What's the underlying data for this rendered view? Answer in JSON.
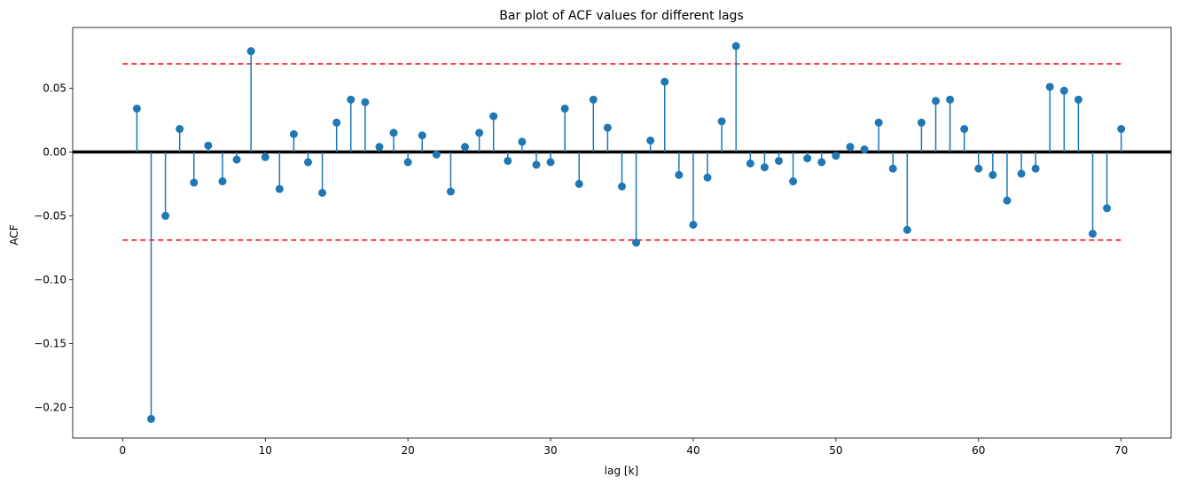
{
  "chart_data": {
    "type": "stem",
    "title": "Bar plot of ACF values for different lags",
    "xlabel": "lag [k]",
    "ylabel": "ACF",
    "xlim": [
      -3.5,
      73.5
    ],
    "ylim": [
      -0.224,
      0.0975
    ],
    "xticks": [
      0,
      10,
      20,
      30,
      40,
      50,
      60,
      70
    ],
    "xtick_labels": [
      "0",
      "10",
      "20",
      "30",
      "40",
      "50",
      "60",
      "70"
    ],
    "yticks": [
      -0.2,
      -0.15,
      -0.1,
      -0.05,
      0.0,
      0.05
    ],
    "ytick_labels": [
      "−0.20",
      "−0.15",
      "−0.10",
      "−0.05",
      "0.00",
      "0.05"
    ],
    "confidence_bound": 0.069,
    "confidence_x_range": [
      0,
      70
    ],
    "zero_line": 0,
    "colors": {
      "stem": "#1f77b4",
      "bounds": "#ff0000",
      "zero": "#000000"
    },
    "x": [
      1,
      2,
      3,
      4,
      5,
      6,
      7,
      8,
      9,
      10,
      11,
      12,
      13,
      14,
      15,
      16,
      17,
      18,
      19,
      20,
      21,
      22,
      23,
      24,
      25,
      26,
      27,
      28,
      29,
      30,
      31,
      32,
      33,
      34,
      35,
      36,
      37,
      38,
      39,
      40,
      41,
      42,
      43,
      44,
      45,
      46,
      47,
      48,
      49,
      50,
      51,
      52,
      53,
      54,
      55,
      56,
      57,
      58,
      59,
      60,
      61,
      62,
      63,
      64,
      65,
      66,
      67,
      68,
      69,
      70
    ],
    "values": [
      0.034,
      -0.209,
      -0.05,
      0.018,
      -0.024,
      0.005,
      -0.023,
      -0.006,
      0.079,
      -0.004,
      -0.029,
      0.014,
      -0.008,
      -0.032,
      0.023,
      0.041,
      0.039,
      0.004,
      0.015,
      -0.008,
      0.013,
      -0.002,
      -0.031,
      0.004,
      0.015,
      0.028,
      -0.007,
      0.008,
      -0.01,
      -0.008,
      0.034,
      -0.025,
      0.041,
      0.019,
      -0.027,
      -0.071,
      0.009,
      0.055,
      -0.018,
      -0.057,
      -0.02,
      0.024,
      0.083,
      -0.009,
      -0.012,
      -0.007,
      -0.023,
      -0.005,
      -0.008,
      -0.003,
      0.004,
      0.002,
      0.023,
      -0.013,
      -0.061,
      0.023,
      0.04,
      0.041,
      0.018,
      -0.013,
      -0.018,
      -0.038,
      -0.017,
      -0.013,
      0.051,
      0.048,
      0.041,
      -0.064,
      -0.044,
      0.018
    ]
  }
}
